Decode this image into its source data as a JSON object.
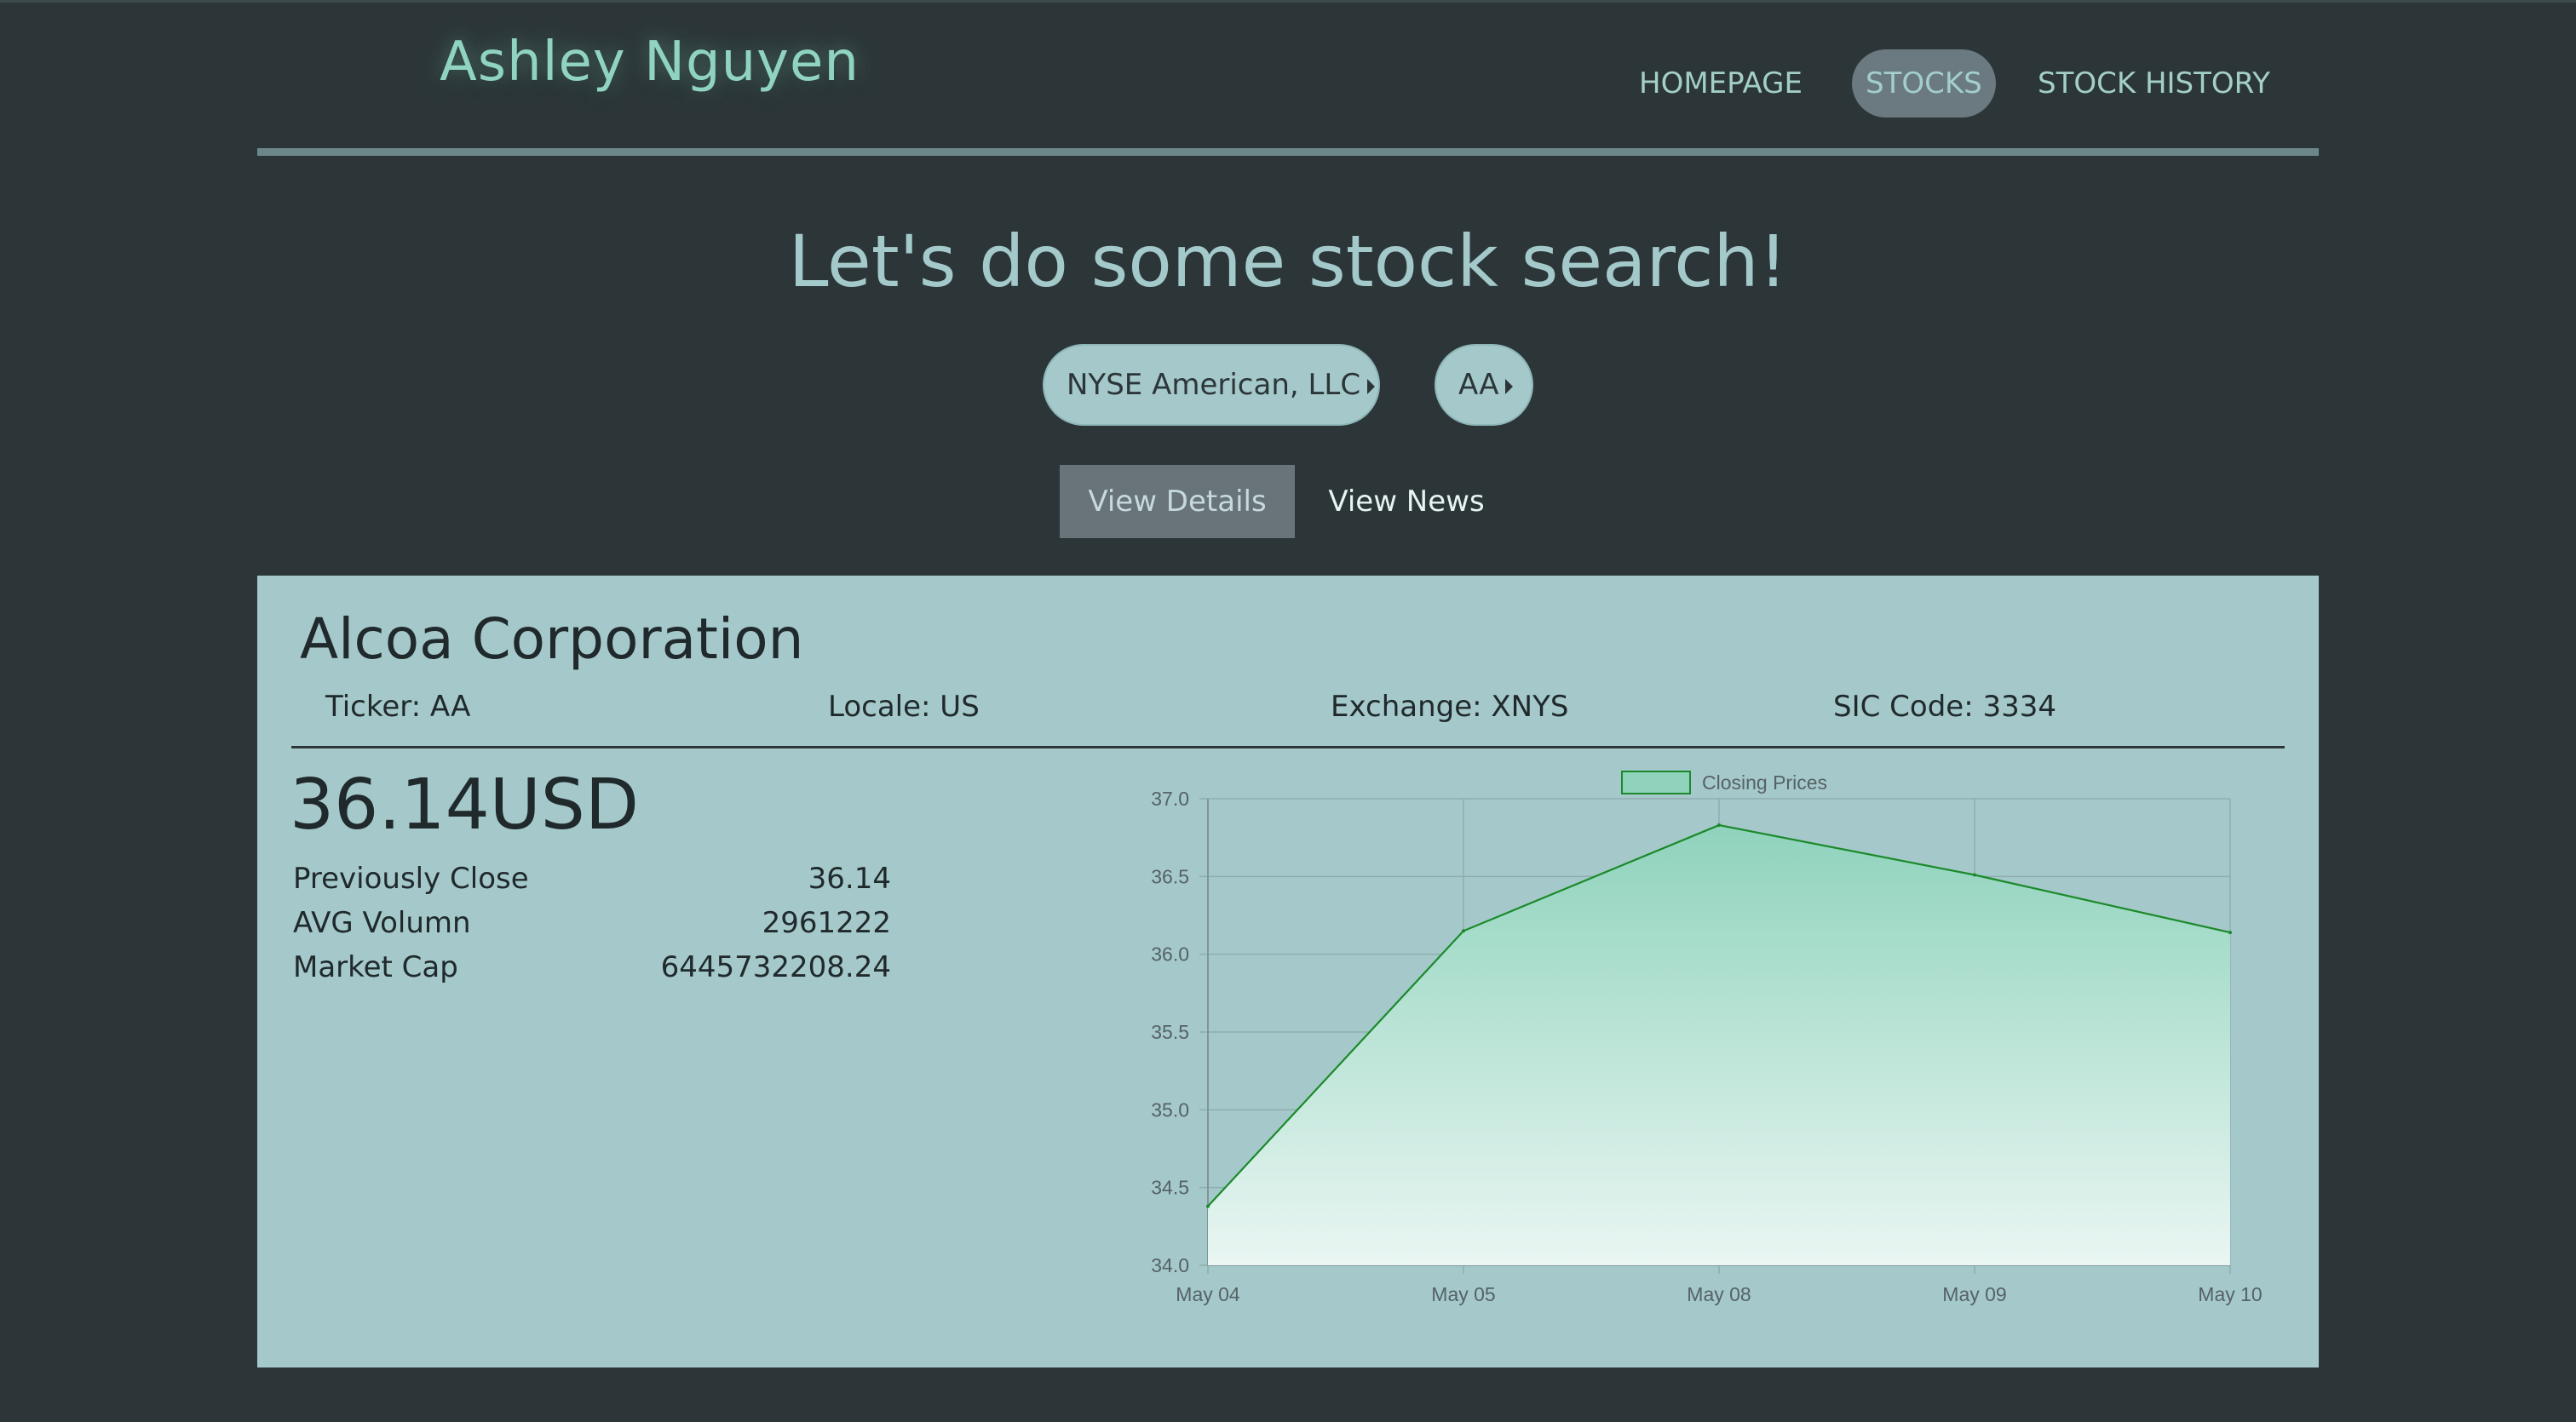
{
  "header": {
    "brand": "Ashley Nguyen",
    "nav": [
      {
        "label": "HOMEPAGE",
        "active": false
      },
      {
        "label": "STOCKS",
        "active": true
      },
      {
        "label": "STOCK HISTORY",
        "active": false
      }
    ]
  },
  "hero": {
    "title": "Let's do some stock search!"
  },
  "selectors": {
    "exchange": "NYSE American, LLC",
    "ticker": "AA"
  },
  "tabs": [
    {
      "label": "View Details",
      "active": true
    },
    {
      "label": "View News",
      "active": false
    }
  ],
  "details": {
    "company_name": "Alcoa Corporation",
    "ticker": "Ticker: AA",
    "locale": "Locale: US",
    "exchange": "Exchange: XNYS",
    "sic_code": "SIC Code: 3334",
    "price": "36.14USD",
    "stats": [
      {
        "label": "Previously Close",
        "value": "36.14"
      },
      {
        "label": "AVG Volumn",
        "value": "2961222"
      },
      {
        "label": "Market Cap",
        "value": "6445732208.24"
      }
    ]
  },
  "colors": {
    "background": "#2c3639",
    "panel": "#a5c9ca",
    "accent": "#8fd3c0",
    "line": "#1b8a2a",
    "fill_top": "#8fd3bc",
    "fill_bottom": "#eaf6f3"
  },
  "chart_data": {
    "type": "area",
    "categories": [
      "May 04",
      "May 05",
      "May 08",
      "May 09",
      "May 10"
    ],
    "series": [
      {
        "name": "Closing Prices",
        "values": [
          34.38,
          36.15,
          36.83,
          36.51,
          36.14
        ]
      }
    ],
    "ylim": [
      34.0,
      37.0
    ],
    "yticks": [
      "37.0",
      "36.5",
      "36.0",
      "35.5",
      "35.0",
      "34.5",
      "34.0"
    ],
    "grid": true,
    "legend": "top"
  }
}
